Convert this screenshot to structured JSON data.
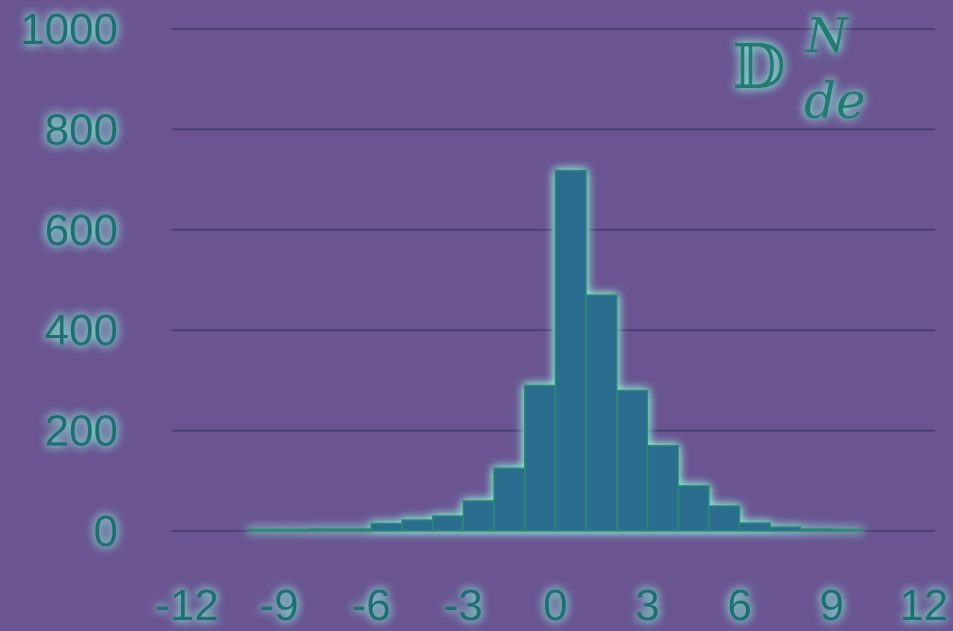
{
  "colors": {
    "background": "#6a5592",
    "grid": "#4b3f73",
    "bar": "#2b6d8f",
    "bar_edge": "#2a8a72",
    "text": "#1f6f73",
    "glow": "#8fffe0"
  },
  "annotation": {
    "base": "𝔻",
    "superscript": "N",
    "subscript": "de"
  },
  "chart_data": {
    "type": "bar",
    "title": "",
    "xlabel": "",
    "ylabel": "",
    "xlim": [
      -12,
      12
    ],
    "ylim": [
      0,
      1000
    ],
    "grid": true,
    "x_ticks": [
      -12,
      -9,
      -6,
      -3,
      0,
      3,
      6,
      9,
      12
    ],
    "y_ticks": [
      0,
      200,
      400,
      600,
      800,
      1000
    ],
    "bins": [
      {
        "x0": -10,
        "x1": -9,
        "value": 3
      },
      {
        "x0": -9,
        "x1": -8,
        "value": 3
      },
      {
        "x0": -8,
        "x1": -7,
        "value": 4
      },
      {
        "x0": -7,
        "x1": -6,
        "value": 4
      },
      {
        "x0": -6,
        "x1": -5,
        "value": 15
      },
      {
        "x0": -5,
        "x1": -4,
        "value": 22
      },
      {
        "x0": -4,
        "x1": -3,
        "value": 30
      },
      {
        "x0": -3,
        "x1": -2,
        "value": 60
      },
      {
        "x0": -2,
        "x1": -1,
        "value": 125
      },
      {
        "x0": -1,
        "x1": 0,
        "value": 290
      },
      {
        "x0": 0,
        "x1": 1,
        "value": 718
      },
      {
        "x0": 1,
        "x1": 2,
        "value": 470
      },
      {
        "x0": 2,
        "x1": 3,
        "value": 280
      },
      {
        "x0": 3,
        "x1": 4,
        "value": 170
      },
      {
        "x0": 4,
        "x1": 5,
        "value": 90
      },
      {
        "x0": 5,
        "x1": 6,
        "value": 50
      },
      {
        "x0": 6,
        "x1": 7,
        "value": 16
      },
      {
        "x0": 7,
        "x1": 8,
        "value": 8
      },
      {
        "x0": 8,
        "x1": 9,
        "value": 4
      },
      {
        "x0": 9,
        "x1": 10,
        "value": 3
      }
    ]
  }
}
